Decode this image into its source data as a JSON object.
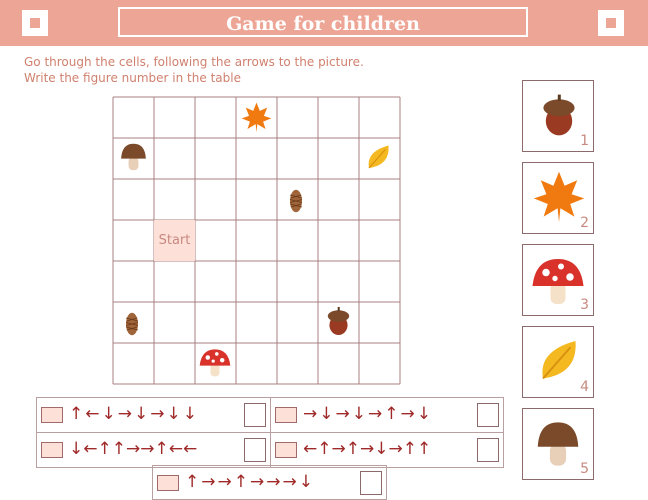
{
  "header": {
    "title": "Game for children"
  },
  "instructions": [
    "Go through the cells, following the arrows to the picture.",
    "Write the figure number in the table"
  ],
  "grid": {
    "start_label": "Start"
  },
  "pictures": [
    "1",
    "2",
    "3",
    "4",
    "5"
  ],
  "sequences": [
    "↑←↓→↓→↓↓",
    "→↓→↓→↑→↓",
    "↓←↑↑→→↑←←",
    "←↑→↑→↓→↑↑",
    "↑→→↑→→→↓"
  ]
}
